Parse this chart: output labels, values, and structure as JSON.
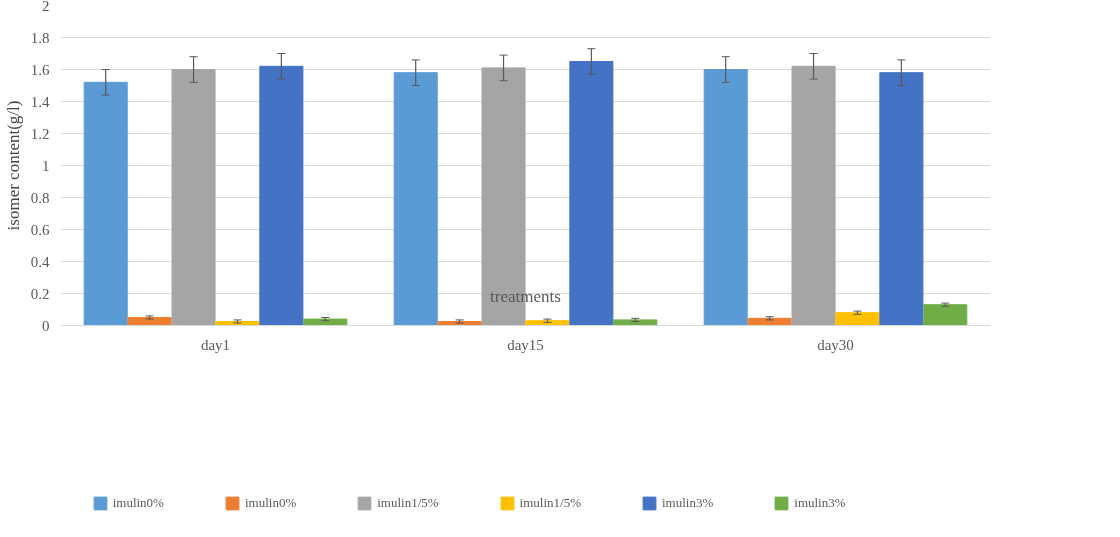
{
  "chart_data": {
    "type": "bar",
    "ylabel": "isomer content(g/l)",
    "categories": [
      "day1",
      "day15",
      "day30"
    ],
    "series": [
      {
        "name": "imulin0%",
        "color": "#5b9bd5",
        "values": [
          1.52,
          1.58,
          1.6
        ],
        "errors": [
          0.08,
          0.08,
          0.08
        ]
      },
      {
        "name": "imulin0%",
        "color": "#ed7d31",
        "values": [
          0.05,
          0.025,
          0.045
        ],
        "errors": [
          0.01,
          0.01,
          0.01
        ]
      },
      {
        "name": "imulin1/5%",
        "color": "#a5a5a5",
        "values": [
          1.6,
          1.61,
          1.62
        ],
        "errors": [
          0.08,
          0.08,
          0.08
        ]
      },
      {
        "name": "imulin1/5%",
        "color": "#ffc000",
        "values": [
          0.025,
          0.03,
          0.08
        ],
        "errors": [
          0.01,
          0.01,
          0.01
        ]
      },
      {
        "name": "imulin3%",
        "color": "#4472c4",
        "values": [
          1.62,
          1.65,
          1.58
        ],
        "errors": [
          0.08,
          0.08,
          0.08
        ]
      },
      {
        "name": "imulin3%",
        "color": "#70ad47",
        "values": [
          0.04,
          0.035,
          0.13
        ],
        "errors": [
          0.01,
          0.01,
          0.01
        ]
      }
    ],
    "annotations": [
      {
        "text": "treatments",
        "x": "day15",
        "y": 0.12
      }
    ],
    "ylim": [
      0,
      2
    ],
    "yticks": [
      0,
      0.2,
      0.4,
      0.6,
      0.8,
      1,
      1.2,
      1.4,
      1.6,
      1.8,
      2
    ],
    "grid": "y",
    "legend": "bottom"
  }
}
